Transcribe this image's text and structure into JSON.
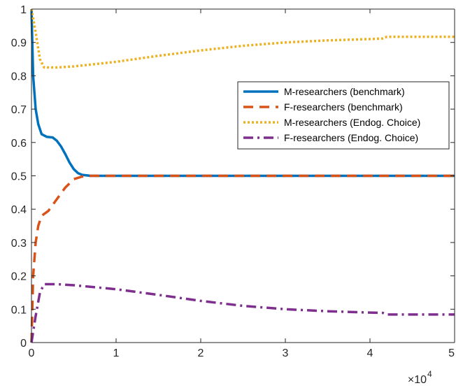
{
  "chart_data": {
    "type": "line",
    "xlim": [
      0,
      5
    ],
    "ylim": [
      0,
      1
    ],
    "x_ticks": [
      "0",
      "1",
      "2",
      "3",
      "4",
      "5"
    ],
    "y_ticks": [
      "0",
      "0.1",
      "0.2",
      "0.3",
      "0.4",
      "0.5",
      "0.6",
      "0.7",
      "0.8",
      "0.9",
      "1"
    ],
    "x_multiplier": {
      "base": "×10",
      "exponent": "4"
    },
    "grid": false,
    "legend_position": "right, upper-middle",
    "series": [
      {
        "name": "M-researchers (benchmark)",
        "color": "#0072BD",
        "style": "solid",
        "points": [
          [
            0,
            1.0
          ],
          [
            0.02,
            0.8
          ],
          [
            0.05,
            0.7
          ],
          [
            0.08,
            0.655
          ],
          [
            0.12,
            0.625
          ],
          [
            0.18,
            0.617
          ],
          [
            0.25,
            0.615
          ],
          [
            0.3,
            0.605
          ],
          [
            0.35,
            0.588
          ],
          [
            0.4,
            0.565
          ],
          [
            0.45,
            0.54
          ],
          [
            0.5,
            0.52
          ],
          [
            0.55,
            0.508
          ],
          [
            0.6,
            0.503
          ],
          [
            0.7,
            0.5
          ],
          [
            1,
            0.5
          ],
          [
            2,
            0.5
          ],
          [
            3,
            0.5
          ],
          [
            4,
            0.5
          ],
          [
            5,
            0.5
          ]
        ]
      },
      {
        "name": "F-researchers (benchmark)",
        "color": "#D95319",
        "style": "dashed",
        "points": [
          [
            0,
            0.0
          ],
          [
            0.02,
            0.2
          ],
          [
            0.05,
            0.3
          ],
          [
            0.08,
            0.35
          ],
          [
            0.12,
            0.38
          ],
          [
            0.2,
            0.395
          ],
          [
            0.3,
            0.43
          ],
          [
            0.4,
            0.465
          ],
          [
            0.5,
            0.49
          ],
          [
            0.6,
            0.498
          ],
          [
            0.7,
            0.5
          ],
          [
            1,
            0.5
          ],
          [
            2,
            0.5
          ],
          [
            3,
            0.5
          ],
          [
            4,
            0.5
          ],
          [
            5,
            0.5
          ]
        ]
      },
      {
        "name": "M-researchers (Endog. Choice)",
        "color": "#EDB120",
        "style": "dotted",
        "points": [
          [
            0,
            1.0
          ],
          [
            0.05,
            0.93
          ],
          [
            0.1,
            0.85
          ],
          [
            0.15,
            0.825
          ],
          [
            0.3,
            0.825
          ],
          [
            0.5,
            0.828
          ],
          [
            1,
            0.842
          ],
          [
            1.5,
            0.86
          ],
          [
            2,
            0.876
          ],
          [
            2.5,
            0.89
          ],
          [
            3,
            0.9
          ],
          [
            3.5,
            0.906
          ],
          [
            4,
            0.91
          ],
          [
            4.15,
            0.912
          ],
          [
            4.2,
            0.917
          ],
          [
            4.5,
            0.917
          ],
          [
            5,
            0.917
          ]
        ]
      },
      {
        "name": "F-researchers (Endog. Choice)",
        "color": "#7E2F8E",
        "style": "dashdot",
        "points": [
          [
            0,
            0.0
          ],
          [
            0.05,
            0.08
          ],
          [
            0.1,
            0.15
          ],
          [
            0.15,
            0.175
          ],
          [
            0.3,
            0.175
          ],
          [
            0.5,
            0.172
          ],
          [
            1,
            0.16
          ],
          [
            1.5,
            0.143
          ],
          [
            2,
            0.125
          ],
          [
            2.5,
            0.11
          ],
          [
            3,
            0.1
          ],
          [
            3.5,
            0.094
          ],
          [
            4,
            0.09
          ],
          [
            4.15,
            0.089
          ],
          [
            4.2,
            0.084
          ],
          [
            4.5,
            0.084
          ],
          [
            5,
            0.084
          ]
        ]
      }
    ]
  }
}
